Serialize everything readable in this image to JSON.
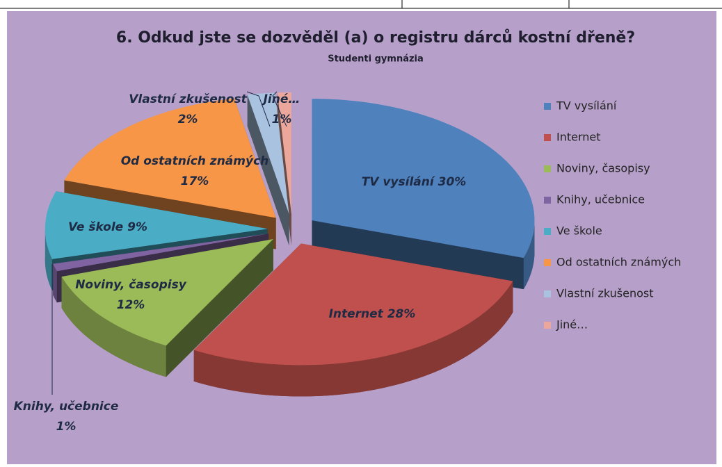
{
  "chart_data": {
    "type": "pie",
    "title": "6. Odkud jste se dozvěděl (a) o registru dárců kostní dřeně?",
    "subtitle": "Studenti gymnázia",
    "categories": [
      "TV vysílání",
      "Internet",
      "Noviny, časopisy",
      "Knihy, učebnice",
      "Ve škole",
      "Od ostatních známých",
      "Vlastní zkušenost",
      "Jiné…"
    ],
    "values": [
      30,
      28,
      12,
      1,
      9,
      17,
      2,
      1
    ],
    "value_labels": [
      "30%",
      "28%",
      "12%",
      "1%",
      "9%",
      "17%",
      "2%",
      "1%"
    ],
    "colors": [
      "#4f81bd",
      "#c0504d",
      "#9bbb59",
      "#8064a2",
      "#4bacc6",
      "#f79646",
      "#a9c2e0",
      "#eba79c"
    ],
    "legend": "right"
  }
}
